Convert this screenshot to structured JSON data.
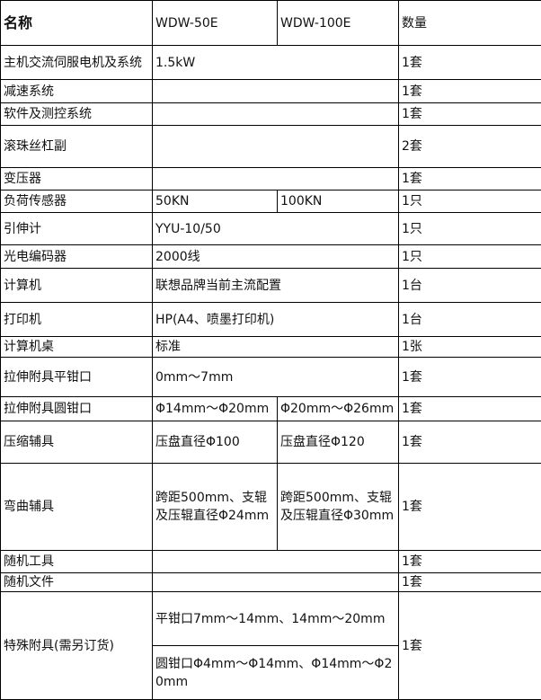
{
  "header": {
    "name": "名称",
    "model_a": "WDW-50E",
    "model_b": "WDW-100E",
    "qty": "数量"
  },
  "rows": [
    {
      "name": "主机交流伺服电机及系统",
      "shared": "1.5kW",
      "qty": "1套"
    },
    {
      "name": "减速系统",
      "shared": "",
      "qty": "1套"
    },
    {
      "name": "软件及测控系统",
      "shared": "",
      "qty": "1套"
    },
    {
      "name": "滚珠丝杠副",
      "shared": "",
      "qty": "2套"
    },
    {
      "name": "变压器",
      "shared": "",
      "qty": "1套"
    },
    {
      "name": "负荷传感器",
      "a": "50KN",
      "b": "100KN",
      "qty": "1只"
    },
    {
      "name": "引伸计",
      "shared": "YYU-10/50",
      "qty": "1只"
    },
    {
      "name": "光电编码器",
      "shared": "2000线",
      "qty": "1只"
    },
    {
      "name": "计算机",
      "shared": "联想品牌当前主流配置",
      "qty": "1台"
    },
    {
      "name": "打印机",
      "shared": "HP(A4、喷墨打印机)",
      "qty": "1台"
    },
    {
      "name": "计算机桌",
      "shared": "标准",
      "qty": "1张"
    },
    {
      "name": "拉伸附具平钳口",
      "shared": "0mm～7mm",
      "qty": "1套"
    },
    {
      "name": "拉伸附具圆钳口",
      "a": "Φ14mm～Φ20mm",
      "b": "Φ20mm～Φ26mm",
      "qty": "1套"
    },
    {
      "name": "压缩辅具",
      "a": "压盘直径Φ100",
      "b": "压盘直径Φ120",
      "qty": "1套"
    },
    {
      "name": "弯曲辅具",
      "a": "跨距500mm、支辊及压辊直径Φ24mm",
      "b": "跨距500mm、支辊及压辊直径Φ30mm",
      "qty": "1套"
    },
    {
      "name": "随机工具",
      "shared": "",
      "qty": "1套"
    },
    {
      "name": "随机文件",
      "shared": "",
      "qty": "1套"
    }
  ],
  "special": {
    "name": "特殊附具(需另订货)",
    "options": [
      "平钳口7mm～14mm、14mm～20mm",
      "圆钳口Φ4mm～Φ14mm、Φ14mm～Φ20mm"
    ],
    "qty": "1套"
  }
}
